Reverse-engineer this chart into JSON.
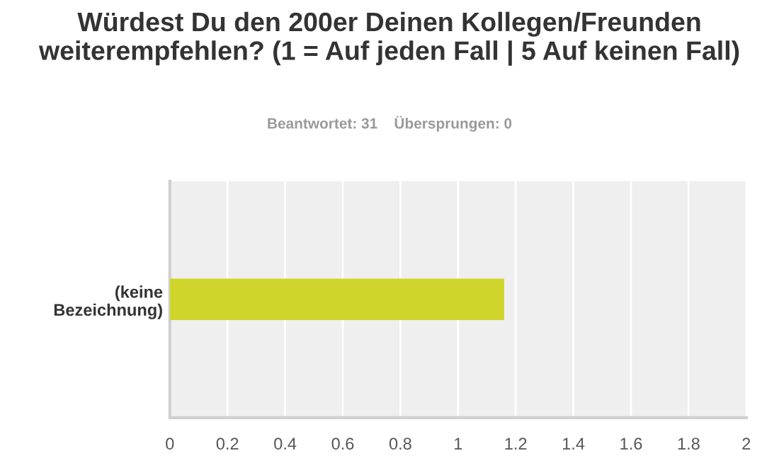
{
  "chart_data": {
    "type": "bar",
    "orientation": "horizontal",
    "title": "Würdest Du den 200er Deinen Kollegen/Freunden weiterempfehlen? (1 = Auf jeden Fall | 5 Auf keinen Fall)",
    "subtitle": "Beantwortet: 31    Übersprungen: 0",
    "categories": [
      "(keine Bezeichnung)"
    ],
    "values": [
      1.16
    ],
    "color": "#cfd52a",
    "xlim": [
      0,
      2
    ],
    "xticks": [
      0,
      0.2,
      0.4,
      0.6,
      0.8,
      1,
      1.2,
      1.4,
      1.6,
      1.8,
      2
    ],
    "grid": "x",
    "legend": false
  }
}
